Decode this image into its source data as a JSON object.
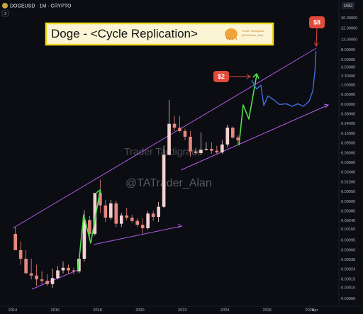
{
  "chart_data": {
    "type": "candlestick",
    "symbol_label": "DOGEUSD · 1M · CRYPTO",
    "interval_badge": "3",
    "currency": "USD",
    "title": "Doge - <Cycle Replication>",
    "logo_text": [
      "Trader Tardigrade",
      "@TATrader_Alan"
    ],
    "watermark": [
      "Trader Tardigrade",
      "@TATrader_Alan"
    ],
    "price_labels": [
      "$8",
      "$2"
    ],
    "log_y": true,
    "up_color": "#f4d2cf",
    "down_color": "#e8877f",
    "projection_color": "#3f6fe0",
    "x": [
      2014.0,
      2014.25,
      2014.5,
      2014.75,
      2015.0,
      2015.25,
      2015.5,
      2015.75,
      2016.0,
      2016.25,
      2016.5,
      2016.75,
      2017.0,
      2017.25,
      2017.5,
      2017.75,
      2018.0,
      2018.25,
      2018.5,
      2018.75,
      2019.0,
      2019.25,
      2019.5,
      2019.75,
      2020.0,
      2020.25,
      2020.5,
      2020.75,
      2021.0,
      2021.25,
      2021.5,
      2021.75,
      2022.0,
      2022.25,
      2022.5,
      2022.75,
      2023.0,
      2023.25,
      2023.5,
      2023.75,
      2024.0,
      2024.25,
      2024.5
    ],
    "open": [
      0.0013,
      0.0006,
      0.0004,
      0.0002,
      0.00018,
      0.00015,
      0.00014,
      0.00012,
      0.00016,
      0.00023,
      0.00026,
      0.00023,
      0.00022,
      0.0004,
      0.0025,
      0.0013,
      0.009,
      0.005,
      0.0028,
      0.0055,
      0.0021,
      0.0031,
      0.0028,
      0.0024,
      0.002,
      0.0017,
      0.0034,
      0.0029,
      0.0047,
      0.055,
      0.24,
      0.2,
      0.17,
      0.13,
      0.065,
      0.06,
      0.07,
      0.073,
      0.067,
      0.062,
      0.09,
      0.2,
      0.125
    ],
    "high": [
      0.0018,
      0.0009,
      0.0006,
      0.0004,
      0.0003,
      0.00022,
      0.00019,
      0.00025,
      0.00028,
      0.00035,
      0.0003,
      0.00026,
      0.00045,
      0.004,
      0.003,
      0.009,
      0.017,
      0.0065,
      0.0065,
      0.0063,
      0.0035,
      0.0045,
      0.0032,
      0.0027,
      0.0027,
      0.0038,
      0.0039,
      0.0059,
      0.085,
      0.74,
      0.35,
      0.35,
      0.19,
      0.17,
      0.075,
      0.16,
      0.1,
      0.1,
      0.085,
      0.11,
      0.23,
      0.21,
      0.14
    ],
    "low": [
      0.0006,
      0.0003,
      0.0002,
      0.00015,
      0.00011,
      0.00012,
      0.00011,
      0.0001,
      0.00015,
      0.0002,
      0.0002,
      0.00019,
      0.0002,
      0.00035,
      0.0011,
      0.0012,
      0.0035,
      0.0023,
      0.0025,
      0.0018,
      0.0018,
      0.0025,
      0.0022,
      0.0018,
      0.0013,
      0.0016,
      0.0024,
      0.0023,
      0.0045,
      0.054,
      0.17,
      0.16,
      0.11,
      0.05,
      0.055,
      0.055,
      0.068,
      0.058,
      0.057,
      0.058,
      0.078,
      0.12,
      0.09
    ],
    "close": [
      0.0006,
      0.0004,
      0.0002,
      0.00018,
      0.00015,
      0.00014,
      0.00012,
      0.00016,
      0.00023,
      0.00026,
      0.00023,
      0.00022,
      0.0004,
      0.0025,
      0.0013,
      0.009,
      0.005,
      0.0028,
      0.0055,
      0.0021,
      0.0031,
      0.0028,
      0.0024,
      0.002,
      0.0017,
      0.0034,
      0.0029,
      0.0047,
      0.055,
      0.24,
      0.2,
      0.17,
      0.13,
      0.065,
      0.06,
      0.07,
      0.073,
      0.067,
      0.062,
      0.09,
      0.2,
      0.125,
      0.11
    ],
    "projection_x": [
      2025.27,
      2025.5,
      2025.7,
      2025.84,
      2026.04,
      2026.3,
      2026.58,
      2026.9,
      2027.18,
      2027.44,
      2027.71,
      2027.98,
      2028.15,
      2028.25,
      2028.3
    ],
    "projection_values": [
      1.9,
      1.25,
      1.5,
      0.57,
      0.9,
      0.75,
      0.6,
      0.62,
      0.55,
      0.62,
      0.55,
      0.7,
      1.15,
      2.9,
      7.5
    ],
    "xlim": [
      2013.4,
      2029.38
    ],
    "xticks": [
      2014,
      2016,
      2018,
      2020,
      2022,
      2024,
      2026,
      2028,
      {
        "value": 2028.25,
        "label": "Apr"
      }
    ],
    "ylim": [
      4.5e-05,
      65
    ],
    "yticks": [
      {
        "value": 36,
        "label": "36.00000"
      },
      {
        "value": 22,
        "label": "22.00000"
      },
      {
        "value": 13,
        "label": "13.00000"
      },
      {
        "value": 8,
        "label": "8.00000"
      },
      {
        "value": 5,
        "label": "5.00000"
      },
      {
        "value": 3.5,
        "label": "3.50000"
      },
      {
        "value": 2.3,
        "label": "2.30000"
      },
      {
        "value": 1.5,
        "label": "1.50000"
      },
      {
        "value": 0.95,
        "label": "0.95000"
      },
      {
        "value": 0.6,
        "label": "0.60000"
      },
      {
        "value": 0.38,
        "label": "0.38000"
      },
      {
        "value": 0.24,
        "label": "0.24000"
      },
      {
        "value": 0.15,
        "label": "0.15000"
      },
      {
        "value": 0.095,
        "label": "0.09500"
      },
      {
        "value": 0.06,
        "label": "0.06000"
      },
      {
        "value": 0.038,
        "label": "0.03800"
      },
      {
        "value": 0.024,
        "label": "0.02400"
      },
      {
        "value": 0.015,
        "label": "0.01500"
      },
      {
        "value": 0.0095,
        "label": "0.00950"
      },
      {
        "value": 0.006,
        "label": "0.00600"
      },
      {
        "value": 0.0038,
        "label": "0.00380"
      },
      {
        "value": 0.0024,
        "label": "0.00240"
      },
      {
        "value": 0.0016,
        "label": "0.00160"
      },
      {
        "value": 0.00095,
        "label": "0.00095"
      },
      {
        "value": 0.0006,
        "label": "0.00060"
      },
      {
        "value": 0.00038,
        "label": "0.00038"
      },
      {
        "value": 0.00024,
        "label": "0.00024"
      },
      {
        "value": 0.00015,
        "label": "0.00015"
      },
      {
        "value": 0.0001,
        "label": "0.00010"
      },
      {
        "value": 6e-05,
        "label": "0.00006"
      }
    ]
  }
}
